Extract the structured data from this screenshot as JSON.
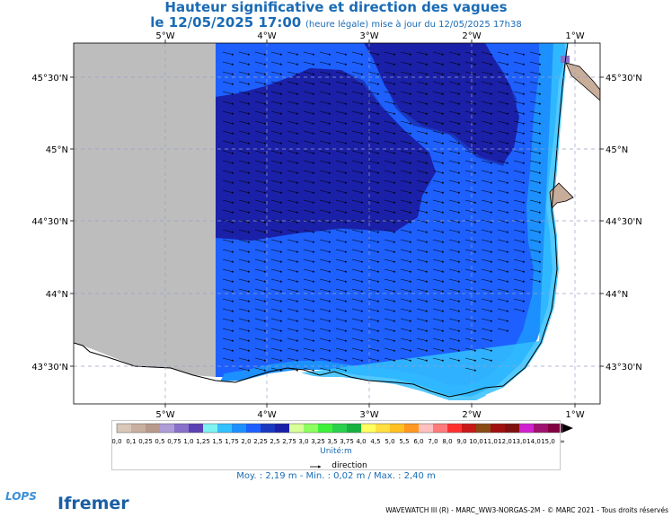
{
  "header": {
    "title": "Hauteur significative et direction des vagues",
    "date": "le 12/05/2025 17:00",
    "note": "(heure légale) mise à jour du 12/05/2025 17h38"
  },
  "map": {
    "top_lon_labels": [
      "5°W",
      "4°W",
      "3°W",
      "2°W",
      "1°W"
    ],
    "bottom_lon_labels": [
      "5°W",
      "4°W",
      "3°W",
      "2°W",
      "1°W"
    ],
    "lat_labels": [
      "45°30'N",
      "45°N",
      "44°30'N",
      "44°N",
      "43°30'N"
    ]
  },
  "legend": {
    "labels": [
      "0,0",
      "0,1",
      "0,25",
      "0,5",
      "0,75",
      "1,0",
      "1,25",
      "1,5",
      "1,75",
      "2,0",
      "2,25",
      "2,5",
      "2,75",
      "3,0",
      "3,25",
      "3,5",
      "3,75",
      "4,0",
      "4,5",
      "5,0",
      "5,5",
      "6,0",
      "7,0",
      "8,0",
      "9,0",
      "10,0",
      "11,0",
      "12,0",
      "13,0",
      "14,0",
      "15,0"
    ],
    "colors": [
      "#d9c7b8",
      "#c8b0a0",
      "#b89a8c",
      "#ad9cd8",
      "#8870c8",
      "#5c3fb5",
      "#7ff2f2",
      "#33c0ff",
      "#1c90ff",
      "#1d60ff",
      "#1a38c0",
      "#1b20a8",
      "#d8ff9a",
      "#8dff60",
      "#3ff03a",
      "#2bd04c",
      "#18b040",
      "#ffff60",
      "#ffe040",
      "#ffc020",
      "#ff9820",
      "#ffc0c0",
      "#ff7a7a",
      "#ff3030",
      "#c81818",
      "#8a4a14",
      "#a01010",
      "#801010",
      "#d020d0",
      "#a01070",
      "#800040"
    ],
    "overflow_symbol": "∞",
    "unit": "Unité:m",
    "direction_label": "direction"
  },
  "stats": "Moy. : 2,19 m   -   Min. : 0,02 m / Max. : 2,40 m",
  "footer": "WAVEWATCH III (R) - MARC_WW3-NORGAS-2M - © MARC 2021 - Tous droits réservés",
  "logos": {
    "lops": "LOPS",
    "ifremer": "Ifremer"
  }
}
